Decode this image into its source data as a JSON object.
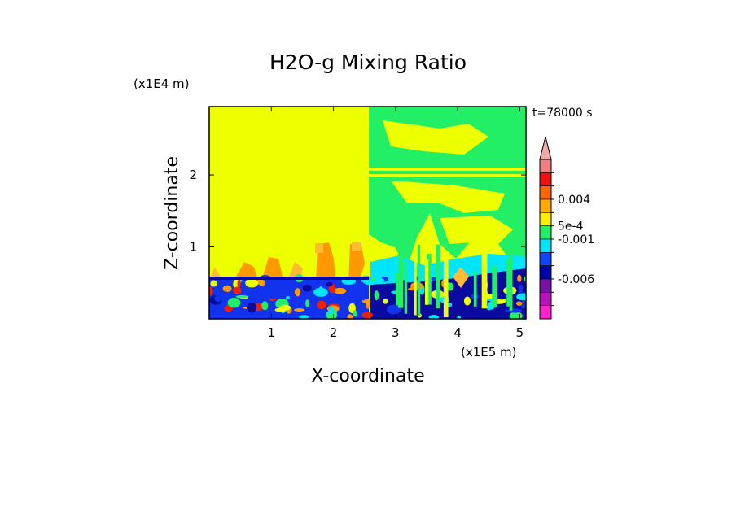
{
  "chart_data": {
    "type": "heatmap",
    "title": "H2O-g Mixing Ratio",
    "xlabel": "X-coordinate",
    "ylabel": "Z-coordinate",
    "x_unit": "(x1E5 m)",
    "y_unit": "(x1E4 m)",
    "time_label": "t=78000 s",
    "xlim": [
      0,
      5.1
    ],
    "ylim": [
      0,
      2.95
    ],
    "x_ticks": [
      1,
      2,
      3,
      4,
      5
    ],
    "y_ticks": [
      1,
      2
    ],
    "colorbar": {
      "levels": [
        "",
        "",
        "0.004",
        "",
        "5e-4",
        "-0.001",
        "",
        "",
        "-0.006",
        "",
        ""
      ],
      "colors": [
        "#f08080",
        "#ee1111",
        "#ff6600",
        "#ffaa00",
        "#ffee00",
        "#22ee66",
        "#00e5ff",
        "#1144ff",
        "#0000aa",
        "#7711aa",
        "#bb11bb",
        "#ff22cc"
      ],
      "extend_arrow_color": "#f4a7a7"
    },
    "field_colors": {
      "background": "#eeff00",
      "green": "#22ee66",
      "cyan": "#00e5ff",
      "blue": "#1133ee",
      "navy": "#0a0aa0",
      "orange": "#ff9900",
      "light_orange": "#ffbb33",
      "red": "#ee2200"
    }
  }
}
